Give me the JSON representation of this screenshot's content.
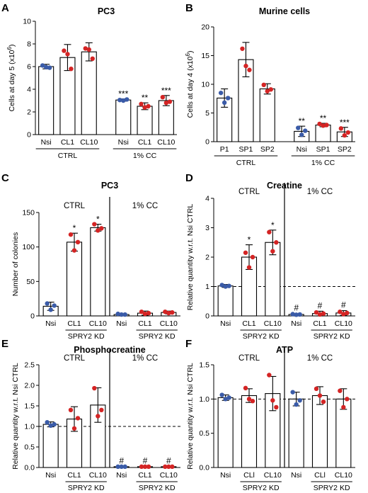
{
  "chart_data": [
    {
      "panel": "A",
      "type": "bar",
      "title": "PC3",
      "ylabel_main": "Cells at day 5 (x10",
      "ylabel_exp": "6",
      "ylabel_tail": ")",
      "ylim": [
        0,
        10
      ],
      "yticks": [
        0,
        2,
        4,
        6,
        8,
        10
      ],
      "yticklabels": [
        "0",
        "2",
        "4",
        "6",
        "8",
        "10"
      ],
      "categories": [
        "Nsi",
        "CL1",
        "CL10",
        "Nsi",
        "CL1",
        "CL10"
      ],
      "values": [
        6.0,
        6.8,
        7.3,
        3.05,
        2.5,
        3.0
      ],
      "errors": [
        0.2,
        1.15,
        0.8,
        0.1,
        0.3,
        0.45
      ],
      "points": [
        [
          6.1,
          5.95,
          5.9
        ],
        [
          7.4,
          7.1,
          5.8
        ],
        [
          7.6,
          7.5,
          6.7
        ],
        [
          3.05,
          3.0,
          3.1
        ],
        [
          2.7,
          2.4,
          2.5
        ],
        [
          3.3,
          2.8,
          2.9
        ]
      ],
      "point_colors": [
        "#3a5ba8",
        "#d42424",
        "#d42424",
        "#3a5ba8",
        "#d42424",
        "#d42424"
      ],
      "significance": [
        "",
        "",
        "",
        "***",
        "**",
        "***"
      ],
      "sig_symbols": [],
      "groups": [
        {
          "label": "CTRL",
          "start": 0,
          "end": 2
        },
        {
          "label": "1% CC",
          "start": 3,
          "end": 5
        }
      ],
      "sub_groups": [],
      "annotations": [],
      "divider_after": null,
      "ref_line": null
    },
    {
      "panel": "B",
      "type": "bar",
      "title": "Murine cells",
      "ylabel_main": "Cells at day 4 (x10",
      "ylabel_exp": "6",
      "ylabel_tail": ")",
      "ylim": [
        0,
        20
      ],
      "yticks": [
        0,
        5,
        10,
        15,
        20
      ],
      "yticklabels": [
        "0",
        "5",
        "10",
        "15",
        "20"
      ],
      "categories": [
        "P1",
        "SP1",
        "SP2",
        "Nsi",
        "SP1",
        "SP2"
      ],
      "values": [
        7.6,
        14.3,
        9.2,
        1.8,
        2.9,
        1.7
      ],
      "errors": [
        1.6,
        3.0,
        0.9,
        0.9,
        0.3,
        0.8
      ],
      "points": [
        [
          8.5,
          6.8,
          7.6
        ],
        [
          16.2,
          13.2,
          12.5
        ],
        [
          9.9,
          8.8,
          9.1
        ],
        [
          2.4,
          1.2,
          1.9
        ],
        [
          3.1,
          2.8,
          2.9
        ],
        [
          2.3,
          1.1,
          1.6
        ]
      ],
      "point_colors": [
        "#3a5ba8",
        "#d42424",
        "#d42424",
        "#3a5ba8",
        "#d42424",
        "#d42424"
      ],
      "significance": [
        "",
        "",
        "",
        "**",
        "**",
        "***"
      ],
      "sig_symbols": [],
      "groups": [
        {
          "label": "CTRL",
          "start": 0,
          "end": 2
        },
        {
          "label": "1% CC",
          "start": 3,
          "end": 5
        }
      ],
      "sub_groups": [],
      "annotations": [],
      "divider_after": null,
      "ref_line": null
    },
    {
      "panel": "C",
      "type": "bar",
      "title": "PC3",
      "ylabel_main": "Number of colonies",
      "ylabel_exp": "",
      "ylabel_tail": "",
      "ylim": [
        0,
        150
      ],
      "yticks": [
        0,
        50,
        100,
        150
      ],
      "yticklabels": [
        "0",
        "50",
        "100",
        "150"
      ],
      "categories": [
        "Nsi",
        "CL1",
        "CL10",
        "Nsi",
        "CL1",
        "CL10"
      ],
      "values": [
        14,
        107,
        128,
        2,
        4,
        5
      ],
      "errors": [
        6,
        13,
        5,
        1,
        3,
        2
      ],
      "points": [
        [
          18,
          9,
          15
        ],
        [
          118,
          95,
          107
        ],
        [
          133,
          124,
          127
        ],
        [
          3,
          2,
          2
        ],
        [
          6,
          3,
          4
        ],
        [
          6,
          4,
          5
        ]
      ],
      "point_colors": [
        "#3a5ba8",
        "#d42424",
        "#d42424",
        "#3a5ba8",
        "#d42424",
        "#d42424"
      ],
      "significance": [
        "",
        "*",
        "*",
        "",
        "",
        ""
      ],
      "sig_symbols": [],
      "groups": [],
      "sub_groups": [
        {
          "label": "SPRY2 KD",
          "start": 1,
          "end": 2
        },
        {
          "label": "SPRY2 KD",
          "start": 4,
          "end": 5
        }
      ],
      "annotations": [
        "CTRL",
        "1% CC"
      ],
      "divider_after": 2,
      "ref_line": null
    },
    {
      "panel": "D",
      "type": "bar",
      "title": "Creatine",
      "ylabel_main": "Relative quantity w.r.t. Nsi CTRL",
      "ylabel_exp": "",
      "ylabel_tail": "",
      "ylim": [
        0,
        4
      ],
      "yticks": [
        0,
        1,
        2,
        3,
        4
      ],
      "yticklabels": [
        "0",
        "1",
        "2",
        "3",
        "4"
      ],
      "categories": [
        "Nsi",
        "CL1",
        "CL10",
        "Nsi",
        "CL1",
        "CL10"
      ],
      "values": [
        1.02,
        2.0,
        2.5,
        0.05,
        0.08,
        0.1
      ],
      "errors": [
        0.05,
        0.42,
        0.42,
        0.03,
        0.08,
        0.08
      ],
      "points": [
        [
          1.05,
          1.0,
          1.02
        ],
        [
          2.15,
          1.65,
          2.0
        ],
        [
          2.85,
          2.2,
          2.5
        ],
        [
          0.06,
          0.04,
          0.05
        ],
        [
          0.12,
          0.05,
          0.08
        ],
        [
          0.14,
          0.06,
          0.1
        ]
      ],
      "point_colors": [
        "#3a5ba8",
        "#d42424",
        "#d42424",
        "#3a5ba8",
        "#d42424",
        "#d42424"
      ],
      "significance": [
        "",
        "*",
        "*",
        "",
        "",
        ""
      ],
      "sig_symbols": [
        "",
        "",
        "",
        "#",
        "#",
        "#"
      ],
      "groups": [],
      "sub_groups": [
        {
          "label": "SPRY2 KD",
          "start": 1,
          "end": 2
        },
        {
          "label": "SPRY2 KD",
          "start": 4,
          "end": 5
        }
      ],
      "annotations": [
        "CTRL",
        "1% CC"
      ],
      "divider_after": 2,
      "ref_line": 1
    },
    {
      "panel": "E",
      "type": "bar",
      "title": "Phosphocreatine",
      "ylabel_main": "Relative quantity w.r.t. Nsi CTRL",
      "ylabel_exp": "",
      "ylabel_tail": "",
      "ylim": [
        0,
        2.5
      ],
      "yticks": [
        0,
        0.5,
        1.0,
        1.5,
        2.0,
        2.5
      ],
      "yticklabels": [
        "0.0",
        "0.5",
        "1.0",
        "1.5",
        "2.0",
        "2.5"
      ],
      "categories": [
        "Nsi",
        "CL1",
        "CL10",
        "Nsi",
        "CL1",
        "CL10"
      ],
      "values": [
        1.05,
        1.18,
        1.52,
        0.02,
        0.02,
        0.02
      ],
      "errors": [
        0.06,
        0.3,
        0.42,
        0.01,
        0.01,
        0.01
      ],
      "points": [
        [
          1.1,
          1.02,
          1.05
        ],
        [
          1.4,
          0.95,
          1.2
        ],
        [
          1.93,
          1.25,
          1.4
        ],
        [
          0.02,
          0.02,
          0.02
        ],
        [
          0.02,
          0.02,
          0.02
        ],
        [
          0.02,
          0.02,
          0.02
        ]
      ],
      "point_colors": [
        "#3a5ba8",
        "#d42424",
        "#d42424",
        "#3a5ba8",
        "#d42424",
        "#d42424"
      ],
      "significance": [
        "",
        "",
        "",
        "",
        "",
        ""
      ],
      "sig_symbols": [
        "",
        "",
        "",
        "#",
        "#",
        "#"
      ],
      "groups": [],
      "sub_groups": [
        {
          "label": "SPRY2 KD",
          "start": 1,
          "end": 2
        },
        {
          "label": "SPRY2 KD",
          "start": 4,
          "end": 5
        }
      ],
      "annotations": [
        "CTRL",
        "1% CC"
      ],
      "divider_after": 2,
      "ref_line": 1
    },
    {
      "panel": "F",
      "type": "bar",
      "title": "ATP",
      "ylabel_main": "Relative quantity w.r.t. Nsi CTRL",
      "ylabel_exp": "",
      "ylabel_tail": "",
      "ylim": [
        0,
        1.5
      ],
      "yticks": [
        0,
        0.5,
        1.0,
        1.5
      ],
      "yticklabels": [
        "0.0",
        "0.5",
        "1.0",
        "1.5"
      ],
      "categories": [
        "Nsi",
        "CLl",
        "CL10",
        "Nsi",
        "CLl",
        "CL10"
      ],
      "values": [
        1.02,
        1.05,
        1.08,
        1.0,
        1.05,
        1.0
      ],
      "errors": [
        0.04,
        0.1,
        0.25,
        0.1,
        0.13,
        0.15
      ],
      "points": [
        [
          1.06,
          1.0,
          1.02
        ],
        [
          1.16,
          1.0,
          0.97
        ],
        [
          1.35,
          0.98,
          0.88
        ],
        [
          1.1,
          0.92,
          0.98
        ],
        [
          1.15,
          1.05,
          0.96
        ],
        [
          1.12,
          0.88,
          1.0
        ]
      ],
      "point_colors": [
        "#3a5ba8",
        "#d42424",
        "#d42424",
        "#3a5ba8",
        "#d42424",
        "#d42424"
      ],
      "significance": [
        "",
        "",
        "",
        "",
        "",
        ""
      ],
      "sig_symbols": [],
      "groups": [],
      "sub_groups": [
        {
          "label": "SPRY2 KD",
          "start": 1,
          "end": 2
        },
        {
          "label": "SPRY2 KD",
          "start": 4,
          "end": 5
        }
      ],
      "annotations": [
        "CTRL",
        "1% CC"
      ],
      "divider_after": 2,
      "ref_line": 1
    }
  ]
}
